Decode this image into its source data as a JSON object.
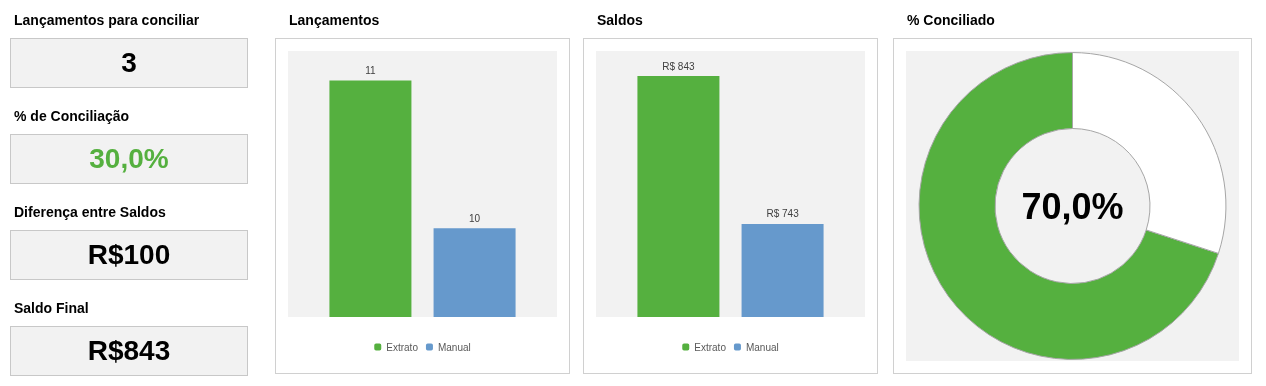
{
  "chart_data": [
    {
      "type": "other",
      "annotations": [
        "Lançamentos para conciliar",
        "3",
        "% de Conciliação",
        "30,0%",
        "Diferença entre Saldos",
        "R$100",
        "Saldo Final",
        "R$843"
      ]
    },
    {
      "type": "bar",
      "title": "Lançamentos",
      "categories": [
        null
      ],
      "series": [
        {
          "name": "Extrato",
          "color": "#55b03f",
          "values": [
            11
          ]
        },
        {
          "name": "Manual",
          "color": "#6699cc",
          "values": [
            10
          ]
        }
      ],
      "ylim": [
        9.4,
        11.2
      ],
      "tick_labels": false,
      "data_labels": true,
      "legend": "bottom"
    },
    {
      "type": "bar",
      "title": "Saldos",
      "categories": [
        null
      ],
      "series": [
        {
          "name": "Extrato",
          "color": "#55b03f",
          "values": [
            843
          ],
          "value_labels": [
            "R$ 843"
          ]
        },
        {
          "name": "Manual",
          "color": "#6699cc",
          "values": [
            743
          ],
          "value_labels": [
            "R$ 743"
          ]
        }
      ],
      "ylim": [
        680,
        860
      ],
      "tick_labels": false,
      "legend": "bottom"
    },
    {
      "type": "donut",
      "title": "% Conciliado",
      "categories": [
        null,
        null
      ],
      "values": [
        70,
        30
      ],
      "colors": [
        "#55b03f",
        "#ffffff"
      ],
      "annotations": [
        "70,0%"
      ]
    }
  ]
}
